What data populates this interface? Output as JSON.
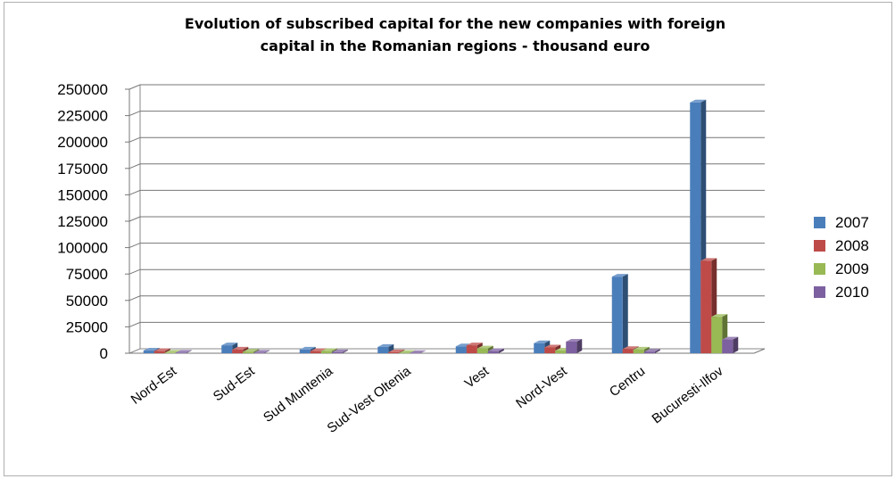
{
  "chart_data": {
    "type": "bar",
    "title_line1": "Evolution of subscribed capital for the new companies with foreign",
    "title_line2": "capital in the Romanian regions - thousand euro",
    "categories": [
      "Nord-Est",
      "Sud-Est",
      "Sud Muntenia",
      "Sud-Vest Oltenia",
      "Vest",
      "Nord-Vest",
      "Centru",
      "Bucuresti-Ilfov"
    ],
    "series": [
      {
        "name": "2007",
        "color": "#4A7EBB",
        "values": [
          2500,
          7500,
          3500,
          6000,
          6500,
          9500,
          72500,
          237500
        ]
      },
      {
        "name": "2008",
        "color": "#BE4B48",
        "values": [
          2000,
          3500,
          2000,
          1000,
          7500,
          5500,
          4000,
          87500
        ]
      },
      {
        "name": "2009",
        "color": "#98B954",
        "values": [
          500,
          1500,
          2000,
          300,
          4500,
          2500,
          3500,
          34500
        ]
      },
      {
        "name": "2010",
        "color": "#7D60A0",
        "values": [
          500,
          500,
          1000,
          200,
          2000,
          11000,
          1500,
          13000
        ]
      }
    ],
    "ylim": [
      0,
      250000
    ],
    "yticks": [
      "0",
      "25000",
      "50000",
      "75000",
      "100000",
      "125000",
      "150000",
      "175000",
      "200000",
      "225000",
      "250000"
    ],
    "grid": true,
    "legend_position": "right"
  }
}
